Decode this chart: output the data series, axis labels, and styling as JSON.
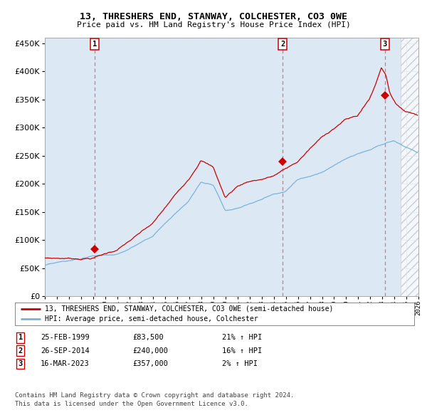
{
  "title": "13, THRESHERS END, STANWAY, COLCHESTER, CO3 0WE",
  "subtitle": "Price paid vs. HM Land Registry's House Price Index (HPI)",
  "footnote1": "Contains HM Land Registry data © Crown copyright and database right 2024.",
  "footnote2": "This data is licensed under the Open Government Licence v3.0.",
  "legend1": "13, THRESHERS END, STANWAY, COLCHESTER, CO3 0WE (semi-detached house)",
  "legend2": "HPI: Average price, semi-detached house, Colchester",
  "transactions": [
    {
      "num": 1,
      "date": "25-FEB-1999",
      "price": "£83,500",
      "hpi": "21% ↑ HPI",
      "x": 1999.12
    },
    {
      "num": 2,
      "date": "26-SEP-2014",
      "price": "£240,000",
      "hpi": "16% ↑ HPI",
      "x": 2014.73
    },
    {
      "num": 3,
      "date": "16-MAR-2023",
      "price": "£357,000",
      "hpi": "2% ↑ HPI",
      "x": 2023.21
    }
  ],
  "transaction_values": [
    83500,
    240000,
    357000
  ],
  "background_color": "#ffffff",
  "plot_bg_color": "#dce9f5",
  "red_line_color": "#cc0000",
  "blue_line_color": "#7ab3d8",
  "dashed_line_color": "#e87070",
  "marker_color": "#cc0000",
  "grid_color": "#e0e8f0",
  "xmin": 1995.0,
  "xmax": 2026.0,
  "ymin": 0,
  "ymax": 460000,
  "yticks": [
    0,
    50000,
    100000,
    150000,
    200000,
    250000,
    300000,
    350000,
    400000,
    450000
  ]
}
